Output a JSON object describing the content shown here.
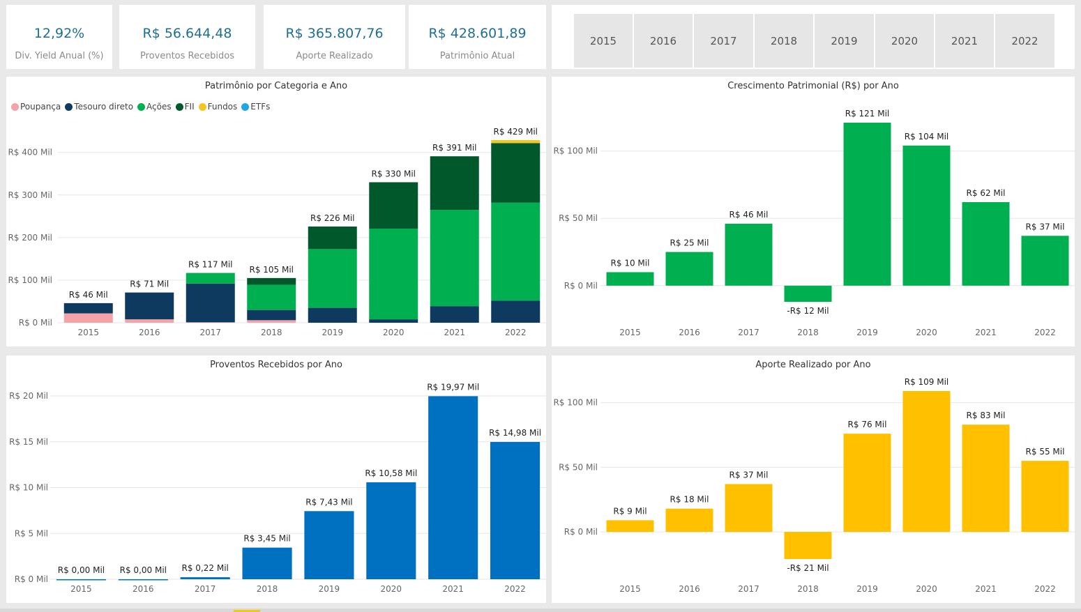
{
  "kpis": [
    {
      "value": "12,92%",
      "label": "Div. Yield Anual (%)"
    },
    {
      "value": "R$ 56.644,48",
      "label": "Proventos Recebidos"
    },
    {
      "value": "R$ 365.807,76",
      "label": "Aporte Realizado"
    },
    {
      "value": "R$ 428.601,89",
      "label": "Patrimônio Atual"
    }
  ],
  "year_slicer": [
    "2015",
    "2016",
    "2017",
    "2018",
    "2019",
    "2020",
    "2021",
    "2022"
  ],
  "colors": {
    "poupanca": "#f4a3a8",
    "tesouro": "#0f3a5f",
    "acoes": "#00b050",
    "fii": "#00582b",
    "fundos": "#f5c520",
    "etfs": "#1ea7e1",
    "blue_bar": "#0070c0",
    "yellow_bar": "#ffc000",
    "green_bar": "#00b050"
  },
  "chart_data": [
    {
      "type": "bar",
      "stacked": true,
      "title": "Patrimônio por Categoria e Ano",
      "categories": [
        "2015",
        "2016",
        "2017",
        "2018",
        "2019",
        "2020",
        "2021",
        "2022"
      ],
      "legend": [
        "Poupança",
        "Tesouro direto",
        "Ações",
        "FII",
        "Fundos",
        "ETFs"
      ],
      "legend_position": "top-left",
      "series": [
        {
          "name": "Poupança",
          "color_key": "poupanca",
          "values": [
            22,
            8,
            1,
            6,
            0,
            0,
            0,
            0
          ]
        },
        {
          "name": "Tesouro direto",
          "color_key": "tesouro",
          "values": [
            24,
            63,
            91,
            24,
            35,
            8,
            39,
            52
          ]
        },
        {
          "name": "Ações",
          "color_key": "acoes",
          "values": [
            0,
            0,
            25,
            59,
            138,
            213,
            226,
            230
          ]
        },
        {
          "name": "FII",
          "color_key": "fii",
          "values": [
            0,
            0,
            0,
            16,
            53,
            109,
            126,
            140
          ]
        },
        {
          "name": "Fundos",
          "color_key": "fundos",
          "values": [
            0,
            0,
            0,
            0,
            0,
            0,
            0,
            7
          ]
        },
        {
          "name": "ETFs",
          "color_key": "etfs",
          "values": [
            0,
            0,
            0,
            0,
            0,
            0,
            0,
            0
          ]
        }
      ],
      "totals": [
        46,
        71,
        117,
        105,
        226,
        330,
        391,
        429
      ],
      "data_labels": [
        "R$ 46 Mil",
        "R$ 71 Mil",
        "R$ 117 Mil",
        "R$ 105 Mil",
        "R$ 226 Mil",
        "R$ 330 Mil",
        "R$ 391 Mil",
        "R$ 429 Mil"
      ],
      "yticks": [
        0,
        100,
        200,
        300,
        400
      ],
      "ytick_labels": [
        "R$ 0 Mil",
        "R$ 100 Mil",
        "R$ 200 Mil",
        "R$ 300 Mil",
        "R$ 400 Mil"
      ],
      "ylim": [
        0,
        429
      ],
      "grid": true
    },
    {
      "type": "bar",
      "title": "Crescimento Patrimonial (R$) por Ano",
      "categories": [
        "2015",
        "2016",
        "2017",
        "2018",
        "2019",
        "2020",
        "2021",
        "2022"
      ],
      "values": [
        10,
        25,
        46,
        -12,
        121,
        104,
        62,
        37
      ],
      "color_key": "green_bar",
      "data_labels": [
        "R$ 10 Mil",
        "R$ 25 Mil",
        "R$ 46 Mil",
        "-R$ 12 Mil",
        "R$ 121 Mil",
        "R$ 104 Mil",
        "R$ 62 Mil",
        "R$ 37 Mil"
      ],
      "yticks": [
        0,
        50,
        100
      ],
      "ytick_labels": [
        "R$ 0 Mil",
        "R$ 50 Mil",
        "R$ 100 Mil"
      ],
      "ylim": [
        -12,
        121
      ],
      "grid": true
    },
    {
      "type": "bar",
      "title": "Proventos Recebidos por Ano",
      "categories": [
        "2015",
        "2016",
        "2017",
        "2018",
        "2019",
        "2020",
        "2021",
        "2022"
      ],
      "values": [
        0.0,
        0.0,
        0.22,
        3.45,
        7.43,
        10.58,
        19.97,
        14.98
      ],
      "color_key": "blue_bar",
      "data_labels": [
        "R$ 0,00 Mil",
        "R$ 0,00 Mil",
        "R$ 0,22 Mil",
        "R$ 3,45 Mil",
        "R$ 7,43 Mil",
        "R$ 10,58 Mil",
        "R$ 19,97 Mil",
        "R$ 14,98 Mil"
      ],
      "yticks": [
        0,
        5,
        10,
        15,
        20
      ],
      "ytick_labels": [
        "R$ 0 Mil",
        "R$ 5 Mil",
        "R$ 10 Mil",
        "R$ 15 Mil",
        "R$ 20 Mil"
      ],
      "ylim": [
        0,
        20
      ],
      "grid": true
    },
    {
      "type": "bar",
      "title": "Aporte Realizado por Ano",
      "categories": [
        "2015",
        "2016",
        "2017",
        "2018",
        "2019",
        "2020",
        "2021",
        "2022"
      ],
      "values": [
        9,
        18,
        37,
        -21,
        76,
        109,
        83,
        55
      ],
      "color_key": "yellow_bar",
      "data_labels": [
        "R$ 9 Mil",
        "R$ 18 Mil",
        "R$ 37 Mil",
        "-R$ 21 Mil",
        "R$ 76 Mil",
        "R$ 109 Mil",
        "R$ 83 Mil",
        "R$ 55 Mil"
      ],
      "yticks": [
        0,
        50,
        100
      ],
      "ytick_labels": [
        "R$ 0 Mil",
        "R$ 50 Mil",
        "R$ 100 Mil"
      ],
      "ylim": [
        -21,
        109
      ],
      "grid": true
    }
  ]
}
